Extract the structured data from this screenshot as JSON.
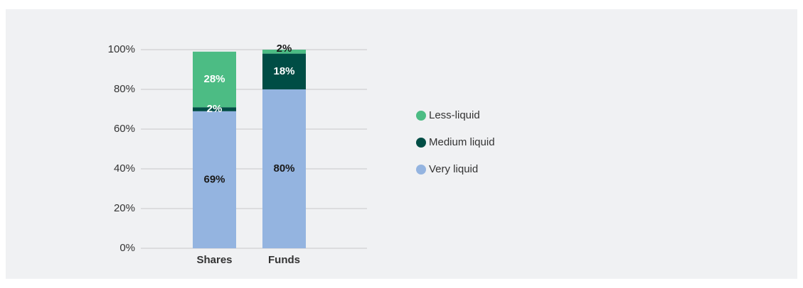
{
  "chart_data": {
    "type": "stacked_bar",
    "categories": [
      "Shares",
      "Funds"
    ],
    "series": [
      {
        "name": "Very liquid",
        "color": "#94b4e0",
        "values": [
          69,
          80
        ],
        "value_labels": [
          "69%",
          "80%"
        ]
      },
      {
        "name": "Medium liquid",
        "color": "#004d45",
        "values": [
          2,
          18
        ],
        "value_labels": [
          "2%",
          "18%"
        ]
      },
      {
        "name": "Less-liquid",
        "color": "#4cbc84",
        "values": [
          28,
          2
        ],
        "value_labels": [
          "28%",
          "2%"
        ]
      }
    ],
    "ylim": [
      0,
      100
    ],
    "yticks": [
      {
        "value": 0,
        "label": "0%"
      },
      {
        "value": 20,
        "label": "20%"
      },
      {
        "value": 40,
        "label": "40%"
      },
      {
        "value": 60,
        "label": "60%"
      },
      {
        "value": 80,
        "label": "80%"
      },
      {
        "value": 100,
        "label": "100%"
      }
    ],
    "grid": true,
    "legend": "right"
  }
}
